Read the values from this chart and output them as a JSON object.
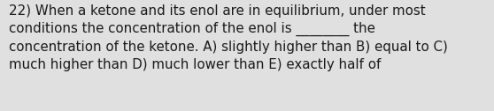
{
  "text": "22) When a ketone and its enol are in equilibrium, under most\nconditions the concentration of the enol is ________ the\nconcentration of the ketone. A) slightly higher than B) equal to C)\nmuch higher than D) much lower than E) exactly half of",
  "background_color": "#e0e0e0",
  "text_color": "#1a1a1a",
  "font_size": 10.8,
  "font_family": "DejaVu Sans",
  "fig_width": 5.58,
  "fig_height": 1.26,
  "dpi": 100
}
